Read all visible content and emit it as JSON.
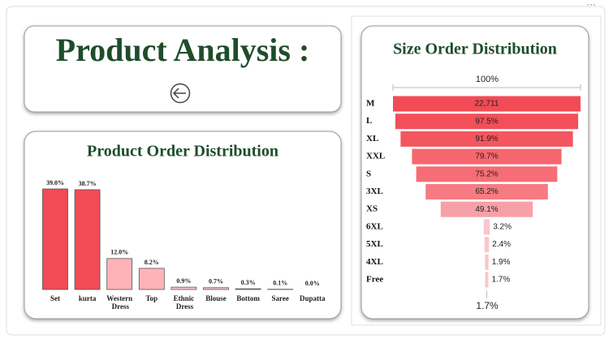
{
  "header": {
    "title": "Product Analysis :"
  },
  "chart_data": [
    {
      "type": "bar",
      "title": "Product Order Distribution",
      "categories": [
        "Set",
        "kurta",
        "Western Dress",
        "Top",
        "Ethnic Dress",
        "Blouse",
        "Bottom",
        "Saree",
        "Dupatta"
      ],
      "values": [
        39.0,
        38.7,
        12.0,
        8.2,
        0.9,
        0.7,
        0.3,
        0.1,
        0.0
      ],
      "value_labels": [
        "39.0%",
        "38.7%",
        "12.0%",
        "8.2%",
        "0.9%",
        "0.7%",
        "0.3%",
        "0.1%",
        "0.0%"
      ],
      "colors": [
        "#f24b55",
        "#f24b55",
        "#ffb3b8",
        "#ffb3b8",
        "#f9c6cc",
        "#f9c6cc",
        "#f9c6cc",
        "#f9c6cc",
        "#f9c6cc"
      ]
    },
    {
      "type": "funnel",
      "title": "Size Order Distribution",
      "top_label": "100%",
      "bottom_label": "1.7%",
      "top_count": 22711,
      "top_count_label": "22,711",
      "categories": [
        "M",
        "L",
        "XL",
        "XXL",
        "S",
        "3XL",
        "XS",
        "6XL",
        "5XL",
        "4XL",
        "Free"
      ],
      "values": [
        100,
        97.5,
        91.9,
        79.7,
        75.2,
        65.2,
        49.1,
        3.2,
        2.4,
        1.9,
        1.7
      ],
      "value_labels": [
        null,
        "97.5%",
        "91.9%",
        "79.7%",
        "75.2%",
        "65.2%",
        "49.1%",
        "3.2%",
        "2.4%",
        "1.9%",
        "1.7%"
      ],
      "colors": [
        "#f24b55",
        "#f34f59",
        "#f4565f",
        "#f5666e",
        "#f56d75",
        "#f67b82",
        "#f8a0a7",
        "#f9c6cc",
        "#f9c6cc",
        "#f9c6cc",
        "#f9c6cc"
      ]
    }
  ]
}
